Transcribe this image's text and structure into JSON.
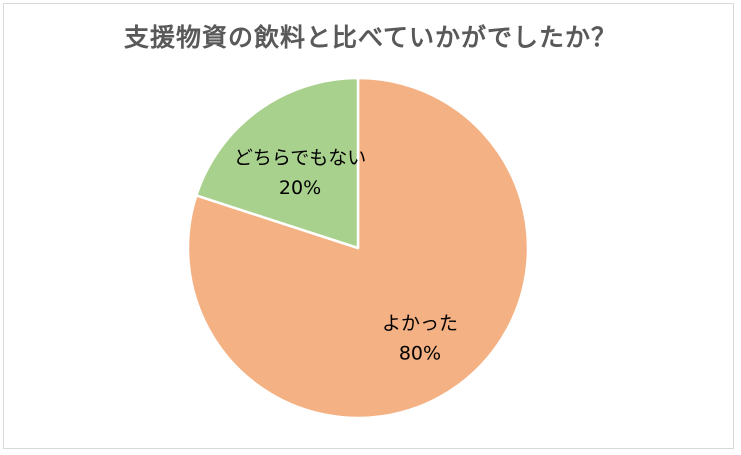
{
  "chart_data": {
    "type": "pie",
    "title": "支援物資の飲料と比べていかがでしたか？",
    "slices": [
      {
        "label": "よかった",
        "value": 80,
        "value_label": "80%",
        "color": "#F4B183"
      },
      {
        "label": "どちらでもない",
        "value": 20,
        "value_label": "20%",
        "color": "#A9D18E"
      }
    ],
    "start_angle_deg": 0,
    "direction": "clockwise",
    "legend": "none",
    "data_labels": "inside"
  }
}
